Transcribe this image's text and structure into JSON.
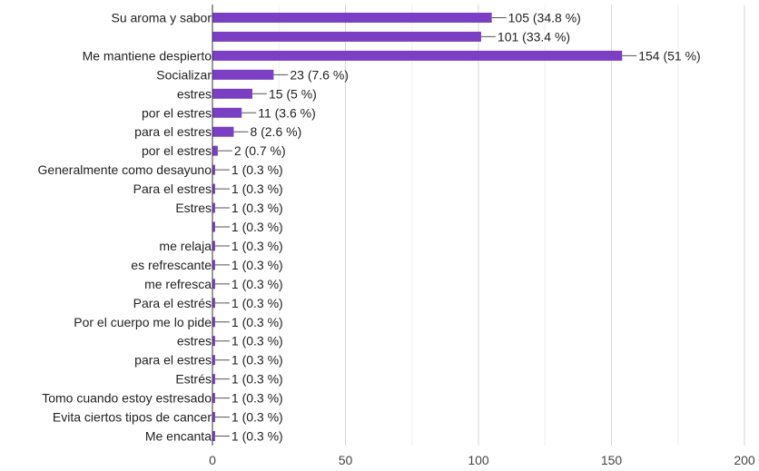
{
  "chart_data": {
    "type": "bar",
    "orientation": "horizontal",
    "title": "",
    "xlabel": "",
    "ylabel": "",
    "xlim": [
      0,
      200
    ],
    "x_ticks": [
      "0",
      "50",
      "100",
      "150",
      "200"
    ],
    "grid": true,
    "bar_color": "#7b3fc4",
    "categories": [
      "Su aroma y sabor",
      "",
      "Me mantiene despierto",
      "Socializar",
      "estres",
      "por el estres",
      "para el estres",
      "por el estres",
      "Generalmente como desayuno",
      "Para el estres",
      "Estres",
      "",
      "me relaja",
      "es refrescante",
      "me refresca",
      "Para el estrés",
      "Por el cuerpo me lo pide",
      "estres",
      "para el estres",
      "Estrés",
      "Tomo cuando estoy estresado",
      "Evita ciertos tipos de cancer",
      "Me encanta"
    ],
    "values": [
      105,
      101,
      154,
      23,
      15,
      11,
      8,
      2,
      1,
      1,
      1,
      1,
      1,
      1,
      1,
      1,
      1,
      1,
      1,
      1,
      1,
      1,
      1
    ],
    "data_labels": [
      "105 (34.8 %)",
      "101 (33.4 %)",
      "154 (51 %)",
      "23 (7.6 %)",
      "15 (5 %)",
      "11 (3.6 %)",
      "8 (2.6 %)",
      "2 (0.7 %)",
      "1 (0.3 %)",
      "1 (0.3 %)",
      "1 (0.3 %)",
      "1 (0.3 %)",
      "1 (0.3 %)",
      "1 (0.3 %)",
      "1 (0.3 %)",
      "1 (0.3 %)",
      "1 (0.3 %)",
      "1 (0.3 %)",
      "1 (0.3 %)",
      "1 (0.3 %)",
      "1 (0.3 %)",
      "1 (0.3 %)",
      "1 (0.3 %)"
    ]
  }
}
